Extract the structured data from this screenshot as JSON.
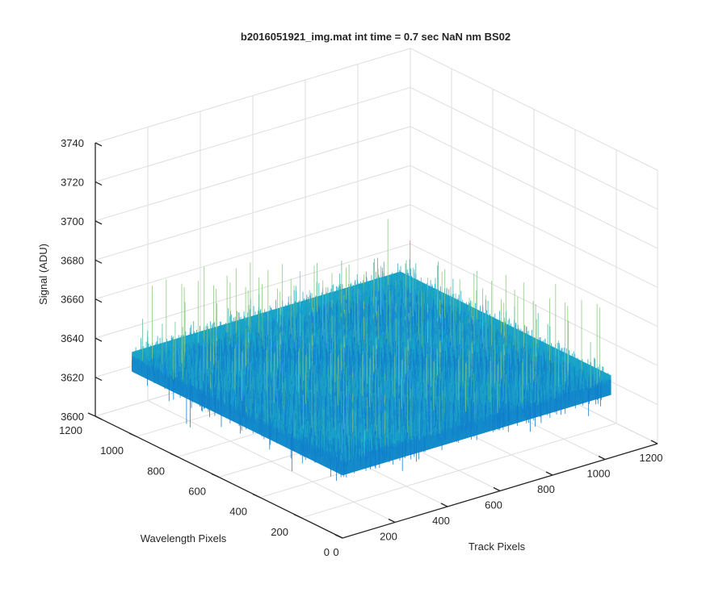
{
  "chart_data": {
    "type": "surface",
    "title": "b2016051921_img.mat int time = 0.7 sec  NaN nm BS02",
    "xlabel": "Track Pixels",
    "ylabel": "Wavelength Pixels",
    "zlabel": "Signal (ADU)",
    "xlim": [
      0,
      1200
    ],
    "ylim": [
      0,
      1200
    ],
    "zlim": [
      3600,
      3740
    ],
    "x_ticks": [
      "0",
      "200",
      "400",
      "600",
      "800",
      "1000",
      "1200"
    ],
    "y_ticks": [
      "0",
      "200",
      "400",
      "600",
      "800",
      "1000",
      "1200"
    ],
    "z_ticks": [
      "3600",
      "3620",
      "3640",
      "3660",
      "3680",
      "3700",
      "3720",
      "3740"
    ],
    "surface": {
      "x_range": [
        1,
        1024
      ],
      "y_range": [
        1,
        1024
      ],
      "mean_signal": 3638,
      "noise_range": [
        3610,
        3710
      ],
      "colormap": "parula",
      "color_low": "#1177cc",
      "color_mid": "#19a5c9",
      "color_high": "#8cc77e"
    },
    "grid": true,
    "view": "3d"
  }
}
